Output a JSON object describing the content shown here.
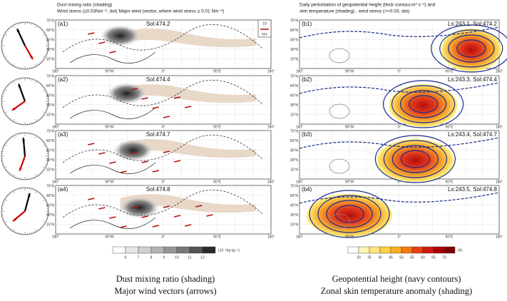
{
  "left_panel": {
    "title": "Dust mixing ratio (shading)",
    "subtitle": "Wind stress (≥0.03Nm⁻², dot)  Major wind (vector, where wind stress ≥ 0.01 Nm⁻²)",
    "vector_key": {
      "value": "10",
      "unit": "m/s"
    },
    "maps": [
      {
        "label": "(a1)",
        "sol": "Sol:474.2"
      },
      {
        "label": "(a2)",
        "sol": "Sol:474.4"
      },
      {
        "label": "(a3)",
        "sol": "Sol:474.7"
      },
      {
        "label": "(a4)",
        "sol": "Sol:474.8"
      }
    ],
    "lat_labels": [
      "75°N",
      "60°N",
      "45°N",
      "30°N",
      "15°N"
    ],
    "lon_labels": [
      "180°",
      "90°W",
      "0°",
      "90°E",
      "180°"
    ],
    "colorbar": {
      "ticks": [
        6,
        7,
        8,
        9,
        10,
        11,
        12
      ],
      "unit": "(10⁻⁹kg kg⁻¹)"
    }
  },
  "right_panel": {
    "title": "Daily perturbation of geopotential height (thick contour,m² s⁻²) and",
    "subtitle": "skin temperature (shading)    , wind stress (>=0.03, dot)",
    "maps": [
      {
        "label": "(b1)",
        "info": "Ls:243.1,  Sol:474.2"
      },
      {
        "label": "(b2)",
        "info": "Ls:243.3,  Sol:474.4"
      },
      {
        "label": "(b3)",
        "info": "Ls:243.4,  Sol:474.7"
      },
      {
        "label": "(b4)",
        "info": "Ls:243.5,  Sol:474.8"
      }
    ],
    "lat_labels": [
      "75°N",
      "60°N",
      "45°N",
      "30°N",
      "15°N"
    ],
    "lon_labels": [
      "180°",
      "90°W",
      "0°",
      "90°E",
      "180°"
    ],
    "colorbar": {
      "ticks": [
        30,
        35,
        40,
        45,
        50,
        55,
        60,
        65,
        70
      ],
      "unit": "(K)"
    }
  },
  "captions": {
    "left": [
      "Dust mixing ratio (shading)",
      "Major wind vectors (arrows)"
    ],
    "right": [
      "Geopotential height (navy contours)",
      "Zonal skin temperature anomaly  (shading)"
    ]
  }
}
